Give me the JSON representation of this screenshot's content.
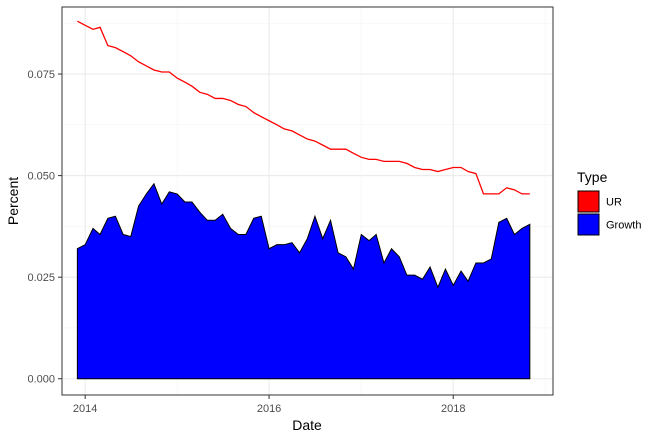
{
  "chart_data": {
    "type": "area",
    "title": "",
    "xlabel": "Date",
    "ylabel": "Percent",
    "xlim": [
      "2013-10-01",
      "2019-02-01"
    ],
    "ylim": [
      -0.004,
      0.0915
    ],
    "x_ticks": [
      {
        "date": "2014-01-01",
        "label": "2014"
      },
      {
        "date": "2016-01-01",
        "label": "2016"
      },
      {
        "date": "2018-01-01",
        "label": "2018"
      }
    ],
    "y_ticks": [
      {
        "value": 0.0,
        "label": "0.000"
      },
      {
        "value": 0.025,
        "label": "0.025"
      },
      {
        "value": 0.05,
        "label": "0.050"
      },
      {
        "value": 0.075,
        "label": "0.075"
      }
    ],
    "grid": true,
    "legend": {
      "title": "Type",
      "placement": "right",
      "entries": [
        {
          "label": "UR",
          "color": "#ff0000"
        },
        {
          "label": "Growth",
          "color": "#0000ff"
        }
      ]
    },
    "dates": [
      "2013-12-01",
      "2014-01-01",
      "2014-02-01",
      "2014-03-01",
      "2014-04-01",
      "2014-05-01",
      "2014-06-01",
      "2014-07-01",
      "2014-08-01",
      "2014-09-01",
      "2014-10-01",
      "2014-11-01",
      "2014-12-01",
      "2015-01-01",
      "2015-02-01",
      "2015-03-01",
      "2015-04-01",
      "2015-05-01",
      "2015-06-01",
      "2015-07-01",
      "2015-08-01",
      "2015-09-01",
      "2015-10-01",
      "2015-11-01",
      "2015-12-01",
      "2016-01-01",
      "2016-02-01",
      "2016-03-01",
      "2016-04-01",
      "2016-05-01",
      "2016-06-01",
      "2016-07-01",
      "2016-08-01",
      "2016-09-01",
      "2016-10-01",
      "2016-11-01",
      "2016-12-01",
      "2017-01-01",
      "2017-02-01",
      "2017-03-01",
      "2017-04-01",
      "2017-05-01",
      "2017-06-01",
      "2017-07-01",
      "2017-08-01",
      "2017-09-01",
      "2017-10-01",
      "2017-11-01",
      "2017-12-01",
      "2018-01-01",
      "2018-02-01",
      "2018-03-01",
      "2018-04-01",
      "2018-05-01",
      "2018-06-01",
      "2018-07-01",
      "2018-08-01",
      "2018-09-01",
      "2018-10-01",
      "2018-11-01"
    ],
    "series": [
      {
        "name": "UR",
        "kind": "line",
        "color": "#ff0000",
        "values": [
          0.088,
          0.087,
          0.086,
          0.0865,
          0.082,
          0.0815,
          0.0805,
          0.0795,
          0.078,
          0.077,
          0.076,
          0.0755,
          0.0755,
          0.074,
          0.073,
          0.072,
          0.0705,
          0.07,
          0.069,
          0.069,
          0.0685,
          0.0675,
          0.067,
          0.0655,
          0.0645,
          0.0635,
          0.0625,
          0.0615,
          0.061,
          0.06,
          0.059,
          0.0585,
          0.0575,
          0.0565,
          0.0565,
          0.0565,
          0.0555,
          0.0545,
          0.054,
          0.054,
          0.0535,
          0.0535,
          0.0535,
          0.053,
          0.052,
          0.0515,
          0.0515,
          0.051,
          0.0515,
          0.052,
          0.052,
          0.051,
          0.0505,
          0.0455,
          0.0455,
          0.0455,
          0.047,
          0.0465,
          0.0455,
          0.0455
        ]
      },
      {
        "name": "Growth",
        "kind": "area",
        "color": "#0000ff",
        "values": [
          0.032,
          0.033,
          0.037,
          0.0355,
          0.0395,
          0.04,
          0.0355,
          0.035,
          0.0425,
          0.0455,
          0.048,
          0.043,
          0.046,
          0.0455,
          0.0435,
          0.0435,
          0.041,
          0.039,
          0.039,
          0.0405,
          0.037,
          0.0355,
          0.0355,
          0.0395,
          0.04,
          0.032,
          0.033,
          0.033,
          0.0335,
          0.031,
          0.0345,
          0.04,
          0.0345,
          0.039,
          0.031,
          0.03,
          0.027,
          0.0355,
          0.034,
          0.0355,
          0.0285,
          0.032,
          0.03,
          0.0255,
          0.0255,
          0.0245,
          0.0275,
          0.0225,
          0.027,
          0.023,
          0.0265,
          0.024,
          0.0285,
          0.0285,
          0.0295,
          0.0385,
          0.0395,
          0.0355,
          0.037,
          0.038
        ]
      }
    ]
  }
}
